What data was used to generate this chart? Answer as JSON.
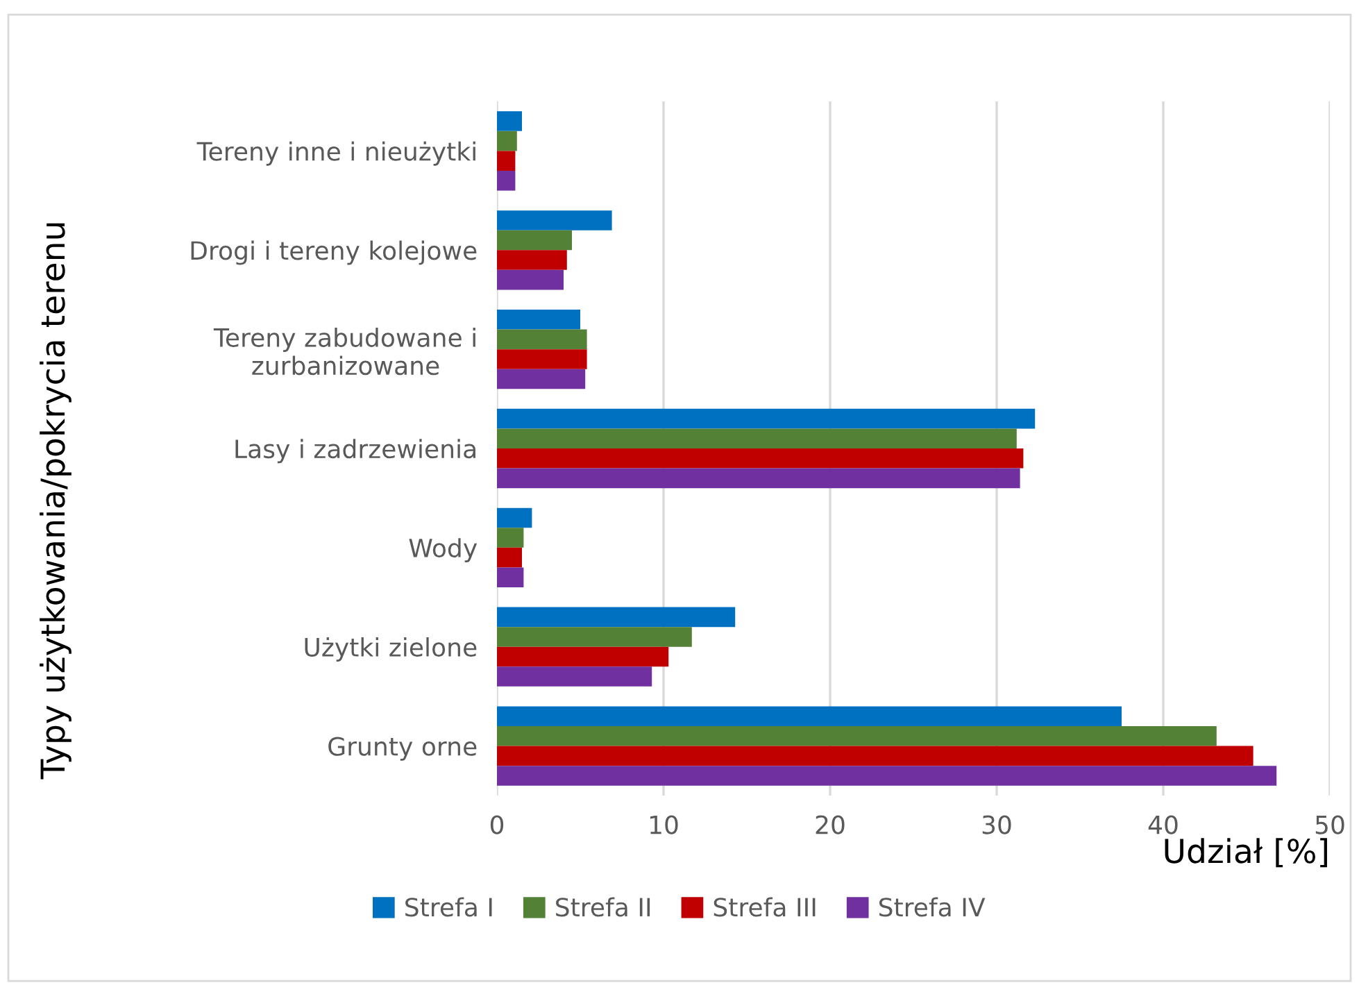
{
  "chart_data": {
    "type": "bar",
    "orientation": "horizontal",
    "xlabel": "Udział [%]",
    "ylabel": "Typy użytkowania/pokrycia terenu",
    "categories": [
      "Tereny inne i nieużytki",
      "Drogi i tereny kolejowe",
      "Tereny zabudowane i\nzurbanizowane",
      "Lasy i zadrzewienia",
      "Wody",
      "Użytki zielone",
      "Grunty orne"
    ],
    "series": [
      {
        "name": "Strefa I",
        "color": "#0070c0",
        "values": [
          1.5,
          6.9,
          5.0,
          32.3,
          2.1,
          14.3,
          37.5
        ]
      },
      {
        "name": "Strefa II",
        "color": "#538135",
        "values": [
          1.2,
          4.5,
          5.4,
          31.2,
          1.6,
          11.7,
          43.2
        ]
      },
      {
        "name": "Strefa III",
        "color": "#c00000",
        "values": [
          1.1,
          4.2,
          5.4,
          31.6,
          1.5,
          10.3,
          45.4
        ]
      },
      {
        "name": "Strefa IV",
        "color": "#7030a0",
        "values": [
          1.1,
          4.0,
          5.3,
          31.4,
          1.6,
          9.3,
          46.8
        ]
      }
    ],
    "xlim": [
      0,
      50
    ],
    "xticks": [
      0,
      10,
      20,
      30,
      40,
      50
    ],
    "grid": "x",
    "legend": "bottom"
  }
}
